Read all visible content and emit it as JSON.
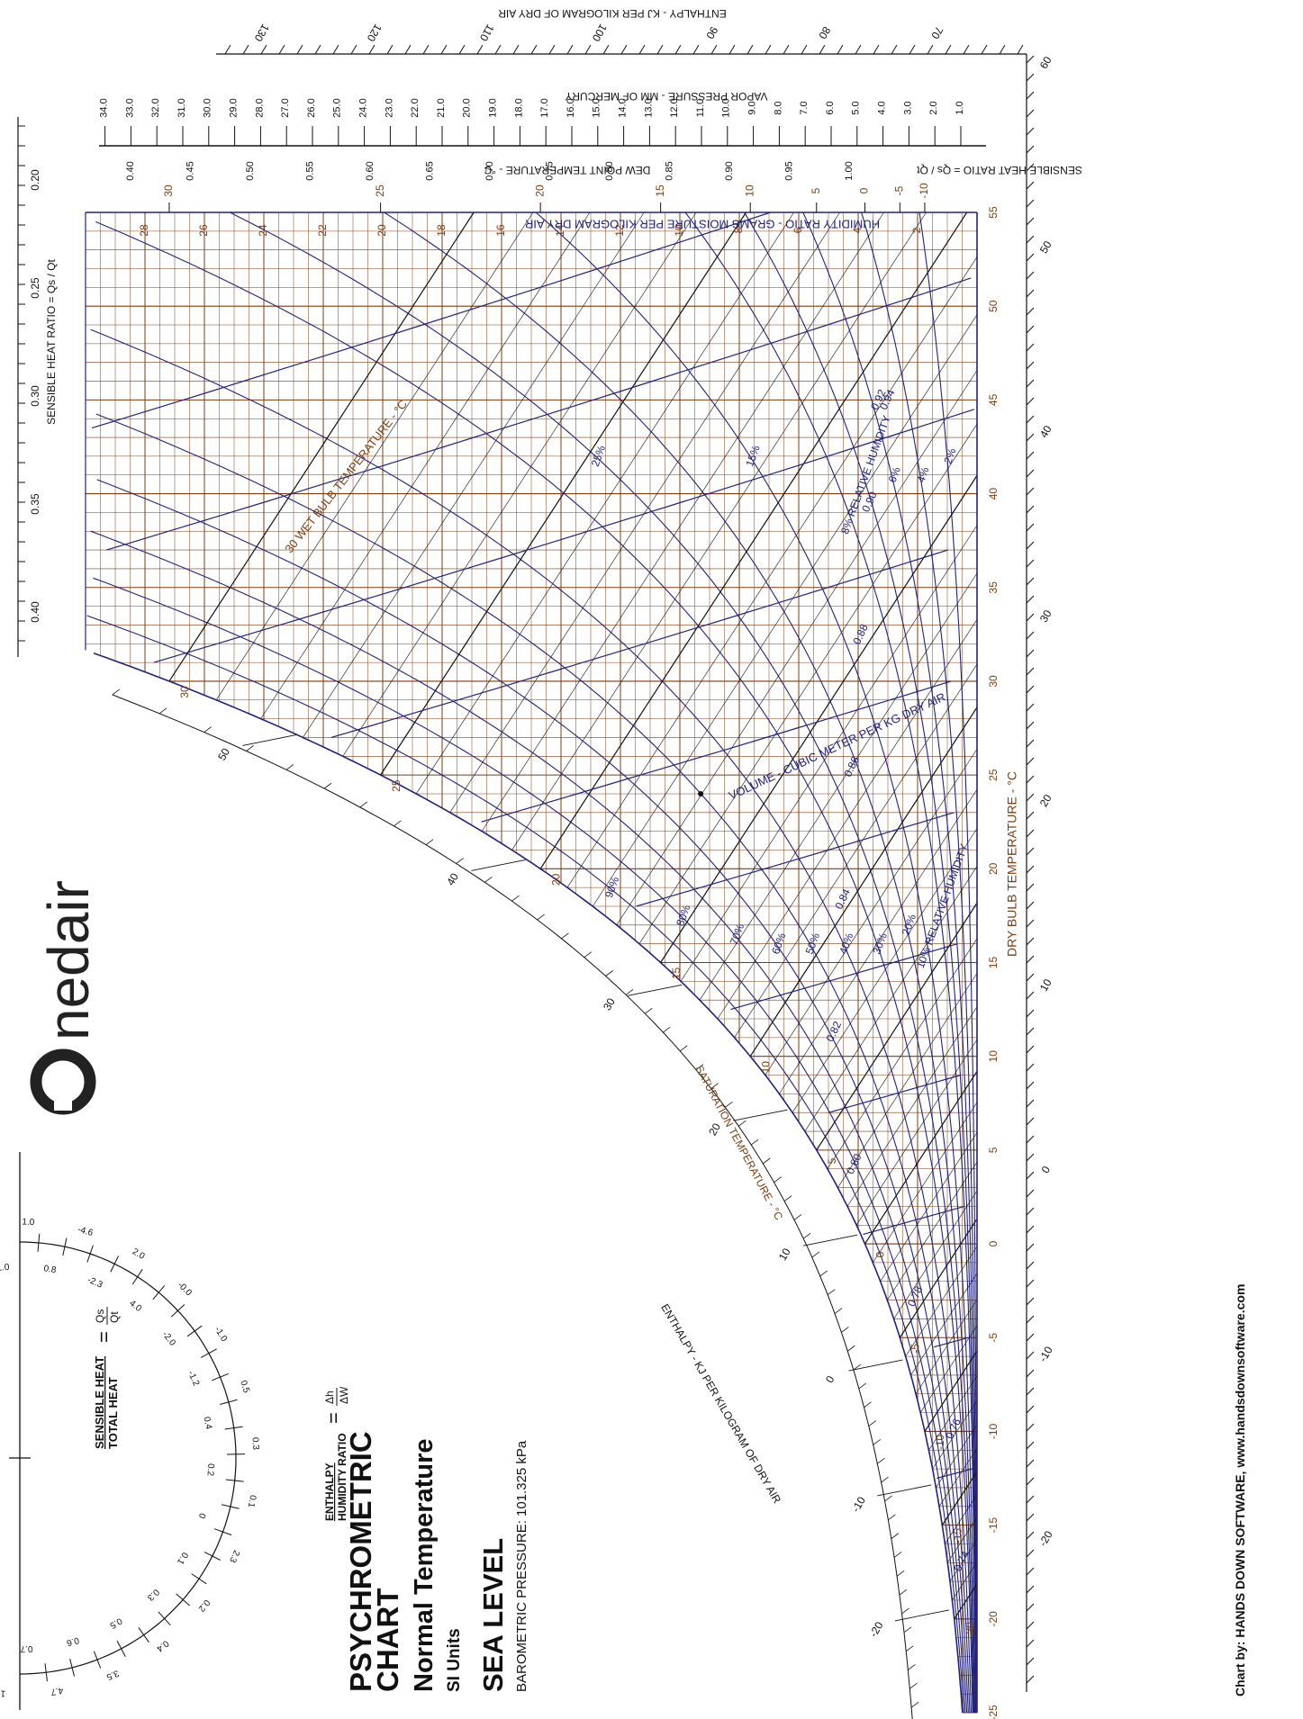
{
  "brand": {
    "name": "nedair"
  },
  "titles": {
    "title": "PSYCHROMETRIC CHART",
    "subtitle": "Normal Temperature",
    "units": "SI Units",
    "altitude": "SEA LEVEL",
    "pressure": "BAROMETRIC PRESSURE: 101.325 kPa",
    "credit": "Chart by: HANDS DOWN SOFTWARE, www.handsdownsoftware.com"
  },
  "protractor": {
    "shr_numer": "SENSIBLE HEAT",
    "shr_denom": "TOTAL HEAT",
    "shr_eq_num": "Qs",
    "shr_eq_den": "Qt",
    "enthalpy_numer": "ENTHALPY",
    "enthalpy_denom": "HUMIDITY RATIO",
    "enthalpy_eq_num": "Δh",
    "enthalpy_eq_den": "ΔW",
    "scale_labels": [
      "1.0",
      "1.0",
      "0.8",
      "-4.6",
      "-2.3",
      "2.0",
      "4.0",
      "-0.0",
      "-2.0",
      "-1.0",
      "-1.2",
      "0.5",
      "0.4",
      "0.3",
      "0.2",
      "0.1",
      "0",
      "2.3",
      "0.1",
      "0.2",
      "0.3",
      "0.4",
      "0.5",
      "3.5",
      "0.6",
      "4.7",
      "0.7",
      "1.1"
    ]
  },
  "chart_data": {
    "type": "line",
    "title": "PSYCHROMETRIC CHART",
    "xlabel": "DRY BULB TEMPERATURE - °C",
    "ylabel": "HUMIDITY RATIO - GRAMS MOISTURE PER KILOGRAM DRY AIR",
    "xlim": [
      -25,
      55
    ],
    "ylim": [
      0,
      30
    ],
    "dry_bulb_ticks": [
      -25,
      -20,
      -15,
      -10,
      -5,
      0,
      5,
      10,
      15,
      20,
      25,
      30,
      35,
      40,
      45,
      50,
      55
    ],
    "humidity_ratio_ticks": [
      2,
      4,
      6,
      8,
      10,
      12,
      14,
      16,
      18,
      20,
      22,
      24,
      26,
      28
    ],
    "dew_point_label": "DEW POINT TEMPERATURE - °C",
    "dew_point_ticks": [
      -10,
      -5,
      0,
      5,
      10,
      15,
      20,
      25,
      30
    ],
    "vapor_pressure_label": "VAPOR PRESSURE - MM OF MERCURY",
    "vapor_pressure_ticks": [
      "1.0",
      "2.0",
      "3.0",
      "4.0",
      "5.0",
      "6.0",
      "7.0",
      "8.0",
      "9.0",
      "10.0",
      "11.0",
      "12.0",
      "13.0",
      "14.0",
      "15.0",
      "16.0",
      "17.0",
      "18.0",
      "19.0",
      "20.0",
      "21.0",
      "22.0",
      "23.0",
      "24.0",
      "25.0",
      "26.0",
      "27.0",
      "28.0",
      "29.0",
      "30.0",
      "31.0",
      "32.0",
      "33.0",
      "34.0"
    ],
    "shr_label": "SENSIBLE HEAT RATIO = Qs / Qt",
    "shr_ticks_right": [
      "1.00",
      "0.95",
      "0.90",
      "0.85",
      "0.80",
      "0.75",
      "0.70",
      "0.65",
      "0.60",
      "0.55",
      "0.50",
      "0.45",
      "0.40"
    ],
    "shr_ticks_top": [
      "0.20",
      "0.25",
      "0.30",
      "0.35",
      "0.40"
    ],
    "enthalpy_label": "ENTHALPY - KJ PER KILOGRAM OF DRY AIR",
    "enthalpy_ticks": [
      -20,
      -10,
      0,
      10,
      20,
      30,
      40,
      50,
      60,
      70,
      80,
      90,
      100,
      110,
      120,
      130
    ],
    "enthalpy_outer_ticks": [
      -20,
      -10,
      0,
      10,
      20,
      30,
      40,
      50,
      60
    ],
    "saturation_label": "SATURATION TEMPERATURE - °C",
    "wet_bulb_label": "WET BULB TEMPERATURE - °C",
    "wet_bulb_ticks": [
      -20,
      -15,
      -10,
      -5,
      0,
      5,
      10,
      15,
      20,
      25,
      30
    ],
    "volume_label": "VOLUME - CUBIC METER PER KG DRY AIR",
    "volume_ticks": [
      "0.74",
      "0.76",
      "0.78",
      "0.80",
      "0.82",
      "0.84",
      "0.86",
      "0.88",
      "0.90",
      "0.92",
      "0.94"
    ],
    "rh_label": "RELATIVE HUMIDITY",
    "rh_levels": [
      2,
      4,
      6,
      8,
      10,
      15,
      20,
      25,
      30,
      40,
      50,
      60,
      70,
      80,
      90,
      100
    ],
    "rh_tick_labels": [
      "90%",
      "80%",
      "70%",
      "60%",
      "50%",
      "40%",
      "30%",
      "20%",
      "10% RELATIVE HUMIDITY",
      "25%",
      "15%",
      "8% RELATIVE HUMIDITY",
      "6%",
      "4%",
      "2%"
    ],
    "grid": true
  }
}
